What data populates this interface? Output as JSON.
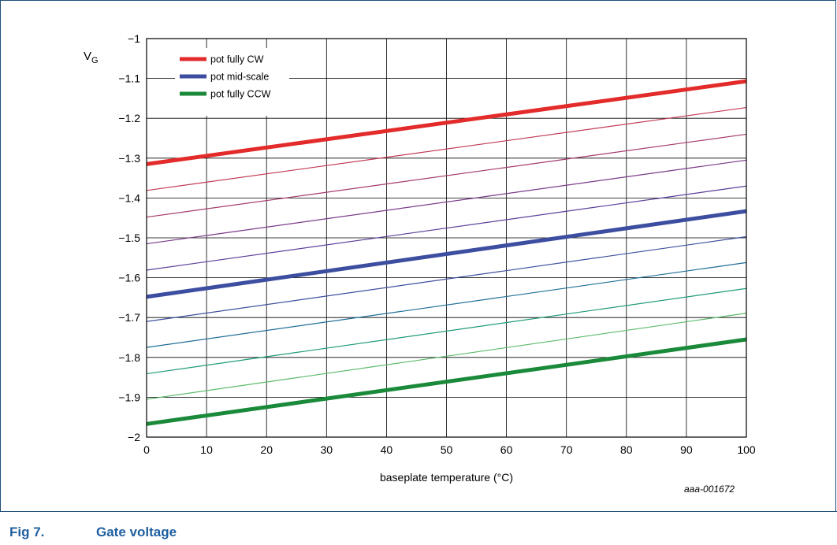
{
  "figure": {
    "number": "Fig 7.",
    "title": "Gate voltage",
    "ref_code": "aaa-001672"
  },
  "chart_data": {
    "type": "line",
    "ylabel_main": "V",
    "ylabel_sub": "G",
    "xlabel": "baseplate temperature (°C)",
    "xlim": [
      0,
      100
    ],
    "ylim": [
      -2,
      -1
    ],
    "xticks": [
      0,
      10,
      20,
      30,
      40,
      50,
      60,
      70,
      80,
      90,
      100
    ],
    "xtick_labels": [
      "0",
      "10",
      "20",
      "30",
      "40",
      "50",
      "60",
      "70",
      "80",
      "90",
      "100"
    ],
    "yticks": [
      -2,
      -1.9,
      -1.8,
      -1.7,
      -1.6,
      -1.5,
      -1.4,
      -1.3,
      -1.2,
      -1.1,
      -1
    ],
    "ytick_labels": [
      "−2",
      "−1.9",
      "−1.8",
      "−1.7",
      "−1.6",
      "−1.5",
      "−1.4",
      "−1.3",
      "−1.2",
      "−1.1",
      "−1"
    ],
    "grid": true,
    "legend_position": "top-left",
    "x": [
      0,
      100
    ],
    "series": [
      {
        "name": "pot fully CW",
        "values": [
          -1.315,
          -1.107
        ],
        "color": "#e32b2b",
        "bold": true,
        "legend": true
      },
      {
        "values": [
          -1.381,
          -1.173
        ],
        "color": "#c23a55",
        "bold": false,
        "legend": false
      },
      {
        "values": [
          -1.448,
          -1.24
        ],
        "color": "#a53a6b",
        "bold": false,
        "legend": false
      },
      {
        "values": [
          -1.515,
          -1.305
        ],
        "color": "#7a3a8a",
        "bold": false,
        "legend": false
      },
      {
        "values": [
          -1.581,
          -1.37
        ],
        "color": "#5a3f9a",
        "bold": false,
        "legend": false
      },
      {
        "name": "pot mid-scale",
        "values": [
          -1.648,
          -1.433
        ],
        "color": "#3d4ea0",
        "bold": true,
        "legend": true
      },
      {
        "values": [
          -1.71,
          -1.497
        ],
        "color": "#3b4f9e",
        "bold": false,
        "legend": false
      },
      {
        "values": [
          -1.775,
          -1.562
        ],
        "color": "#1f6e98",
        "bold": false,
        "legend": false
      },
      {
        "values": [
          -1.841,
          -1.627
        ],
        "color": "#1f9a7a",
        "bold": false,
        "legend": false
      },
      {
        "values": [
          -1.905,
          -1.689
        ],
        "color": "#5cba6a",
        "bold": false,
        "legend": false
      },
      {
        "name": "pot fully CCW",
        "values": [
          -1.967,
          -1.755
        ],
        "color": "#1a8a3a",
        "bold": true,
        "legend": true
      }
    ]
  }
}
